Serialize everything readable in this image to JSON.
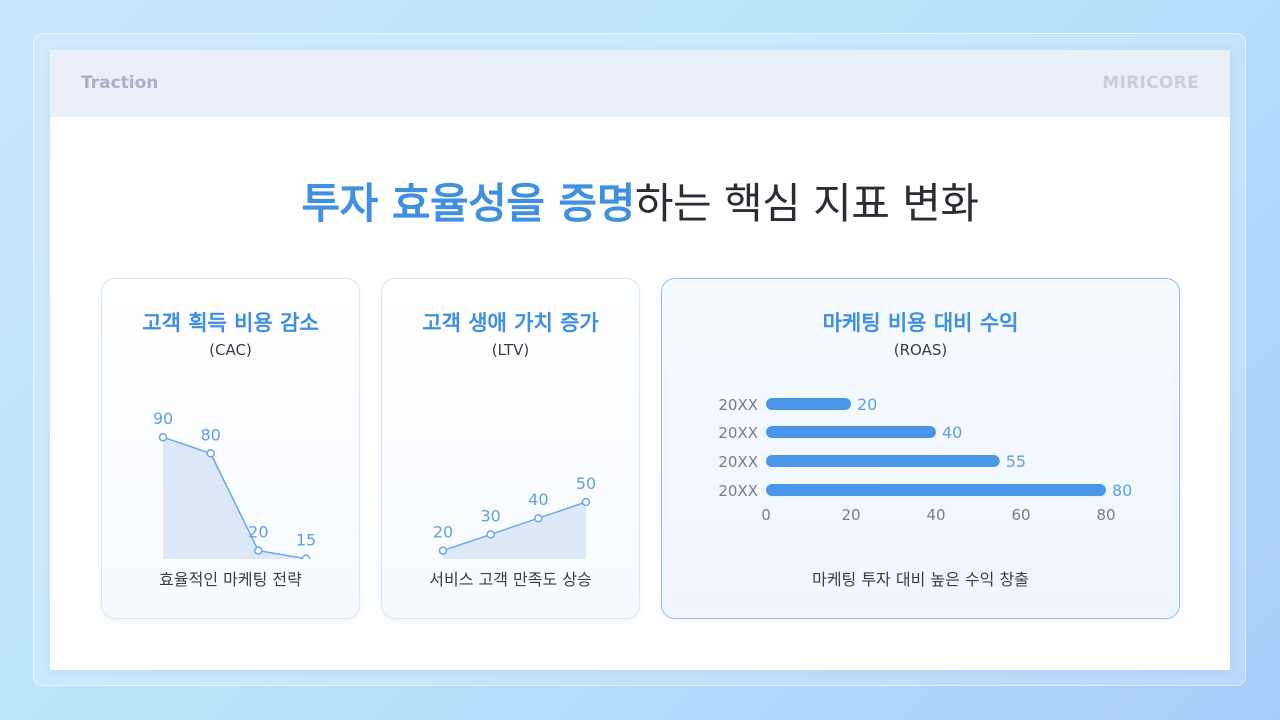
{
  "header": {
    "section": "Traction",
    "brand": "MIRICORE"
  },
  "title": {
    "accent": "투자 효율성을 증명",
    "rest": "하는 핵심 지표 변화"
  },
  "cards": {
    "cac": {
      "title": "고객 획득 비용 감소",
      "subtitle": "(CAC)",
      "footer": "효율적인 마케팅 전략"
    },
    "ltv": {
      "title": "고객 생애 가치 증가",
      "subtitle": "(LTV)",
      "footer": "서비스 고객 만족도 상승"
    },
    "roas": {
      "title": "마케팅 비용 대비 수익",
      "subtitle": "(ROAS)",
      "footer": "마케팅 투자 대비 높은 수익 창출"
    }
  },
  "colors": {
    "accent": "#3f8fe3",
    "bar": "#4a97ea",
    "area": "#dde9f8",
    "line": "#6aa8ec"
  },
  "chart_data": [
    {
      "type": "area",
      "values": [
        90,
        80,
        20,
        15
      ],
      "labels": [
        "90",
        "80",
        "20",
        "15"
      ],
      "title": "고객 획득 비용 감소"
    },
    {
      "type": "area",
      "values": [
        20,
        30,
        40,
        50
      ],
      "labels": [
        "20",
        "30",
        "40",
        "50"
      ],
      "title": "고객 생애 가치 증가"
    },
    {
      "type": "bar",
      "orientation": "horizontal",
      "categories": [
        "20XX",
        "20XX",
        "20XX",
        "20XX"
      ],
      "values": [
        20,
        40,
        55,
        80
      ],
      "xticks": [
        "0",
        "20",
        "40",
        "60",
        "80"
      ],
      "xlim": [
        0,
        80
      ],
      "title": "마케팅 비용 대비 수익"
    }
  ]
}
